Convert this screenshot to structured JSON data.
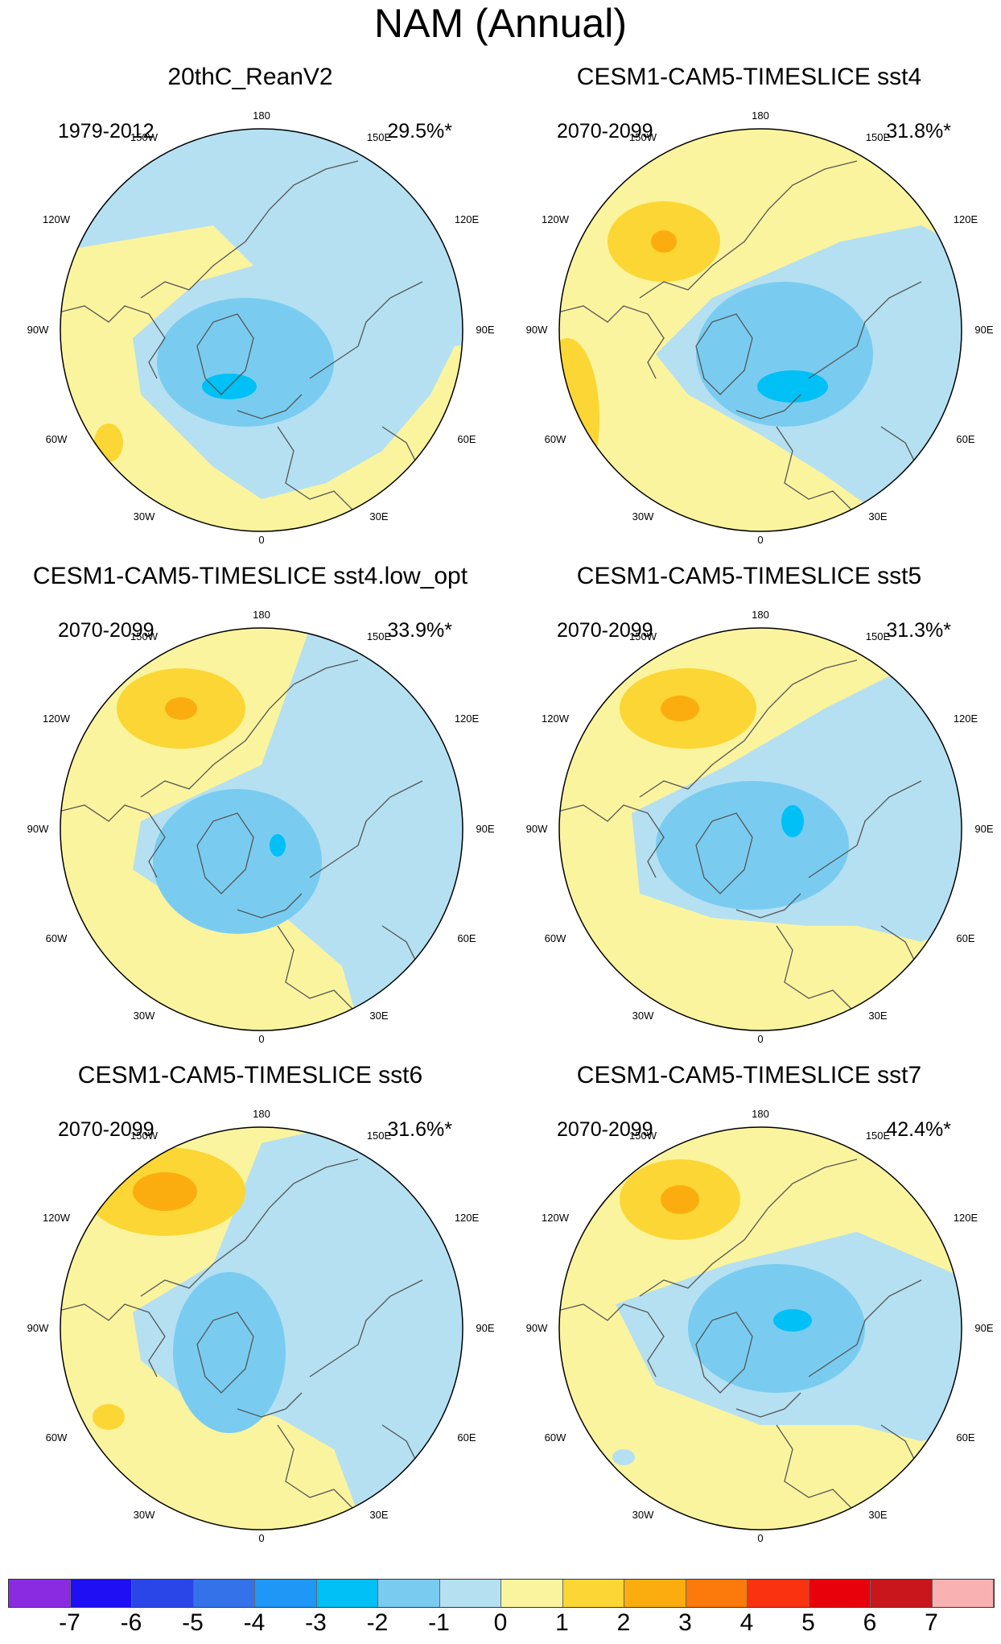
{
  "figure_title": "NAM (Annual)",
  "panels": [
    {
      "title": "20thC_ReanV2",
      "period": "1979-2012",
      "variance": "29.5%*"
    },
    {
      "title": "CESM1-CAM5-TIMESLICE sst4",
      "period": "2070-2099",
      "variance": "31.8%*"
    },
    {
      "title": "CESM1-CAM5-TIMESLICE sst4.low_opt",
      "period": "2070-2099",
      "variance": "33.9%*"
    },
    {
      "title": "CESM1-CAM5-TIMESLICE sst5",
      "period": "2070-2099",
      "variance": "31.3%*"
    },
    {
      "title": "CESM1-CAM5-TIMESLICE sst6",
      "period": "2070-2099",
      "variance": "31.6%*"
    },
    {
      "title": "CESM1-CAM5-TIMESLICE sst7",
      "period": "2070-2099",
      "variance": "42.4%*"
    }
  ],
  "longitude_labels": {
    "top": "180",
    "upper_left": "150W",
    "upper_right": "150E",
    "left_upper": "120W",
    "right_upper": "120E",
    "left": "90W",
    "right": "90E",
    "left_lower": "60W",
    "right_lower": "60E",
    "lower_left": "30W",
    "lower_right": "30E",
    "bottom": "0"
  },
  "colorbar": {
    "colors": [
      "#8a2be2",
      "#1e0ff5",
      "#2a46e8",
      "#3372e8",
      "#1f97f7",
      "#00c0f5",
      "#79ccf0",
      "#b4e0f2",
      "#fbf49e",
      "#fbd634",
      "#fbad0f",
      "#fb7a0b",
      "#fb3210",
      "#e8000b",
      "#c8161c",
      "#f9b1b1"
    ],
    "tick_labels": [
      "-7",
      "-6",
      "-5",
      "-4",
      "-3",
      "-2",
      "-1",
      "0",
      "1",
      "2",
      "3",
      "4",
      "5",
      "6",
      "7"
    ]
  }
}
